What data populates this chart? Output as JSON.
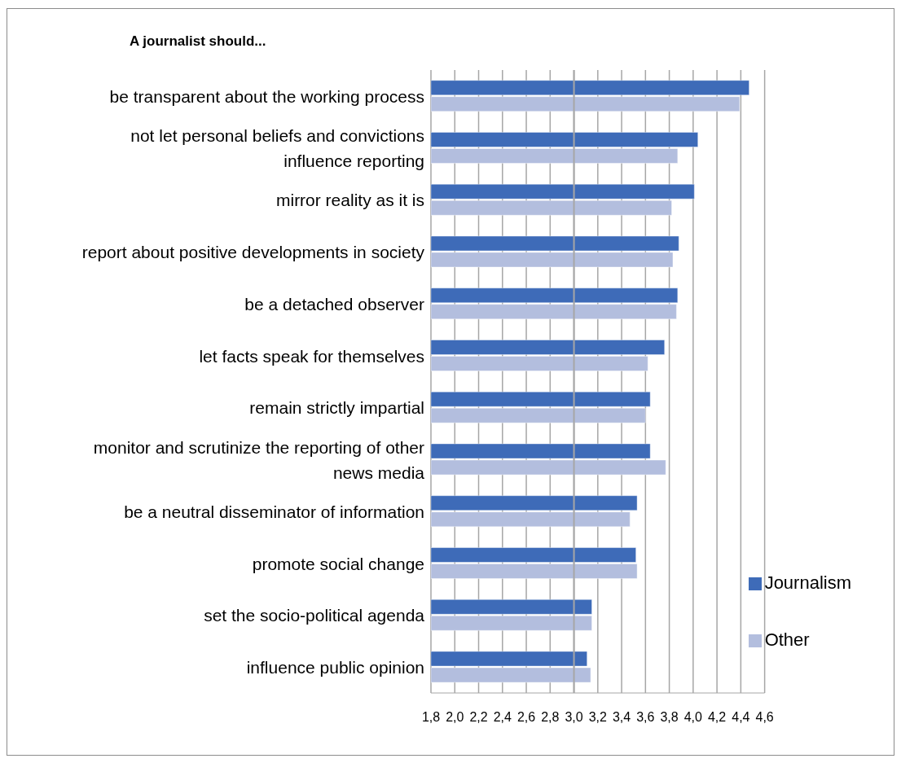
{
  "chart_data": {
    "type": "bar",
    "orientation": "horizontal",
    "title": "A journalist should...",
    "categories": [
      "be transparent about the working process",
      "not let personal beliefs and convictions influence reporting",
      "mirror reality as it is",
      "report about positive developments in society",
      "be a detached observer",
      "let facts speak for themselves",
      "remain strictly impartial",
      "monitor and scrutinize the reporting of other news media",
      "be a neutral disseminator of information",
      "promote social change",
      "set the socio-political agenda",
      "influence public opinion"
    ],
    "series": [
      {
        "name": "Journalism",
        "color": "#3e6bb8",
        "values": [
          4.47,
          4.04,
          4.01,
          3.88,
          3.87,
          3.76,
          3.64,
          3.64,
          3.53,
          3.52,
          3.15,
          3.11
        ]
      },
      {
        "name": "Other",
        "color": "#b3bede",
        "values": [
          4.39,
          3.87,
          3.82,
          3.83,
          3.86,
          3.62,
          3.6,
          3.77,
          3.47,
          3.53,
          3.15,
          3.14
        ]
      }
    ],
    "xlim": [
      1.8,
      4.6
    ],
    "xticks": [
      {
        "value": 1.8,
        "label": "1,8"
      },
      {
        "value": 2.0,
        "label": "2,0"
      },
      {
        "value": 2.2,
        "label": "2,2"
      },
      {
        "value": 2.4,
        "label": "2,4"
      },
      {
        "value": 2.6,
        "label": "2,6"
      },
      {
        "value": 2.8,
        "label": "2,8"
      },
      {
        "value": 3.0,
        "label": "3,0"
      },
      {
        "value": 3.2,
        "label": "3,2"
      },
      {
        "value": 3.4,
        "label": "3,4"
      },
      {
        "value": 3.6,
        "label": "3,6"
      },
      {
        "value": 3.8,
        "label": "3,8"
      },
      {
        "value": 4.0,
        "label": "4,0"
      },
      {
        "value": 4.2,
        "label": "4,2"
      },
      {
        "value": 4.4,
        "label": "4,4"
      },
      {
        "value": 4.6,
        "label": "4,6"
      }
    ],
    "ref_lines": [
      {
        "axis": "x",
        "value": 3.0,
        "color": "#a6a6a6"
      }
    ],
    "grid": "x",
    "legend": "bottom right"
  }
}
